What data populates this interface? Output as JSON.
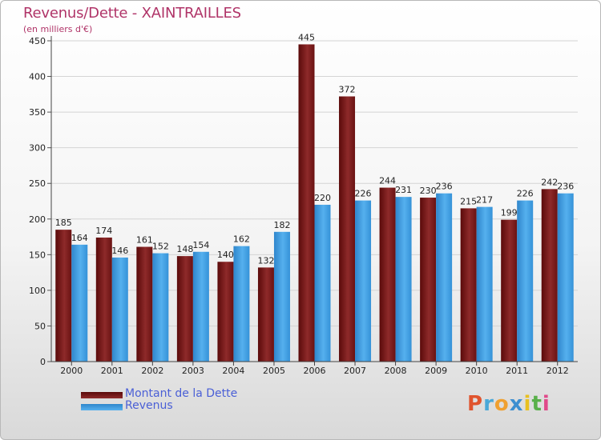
{
  "title": "Revenus/Dette - XAINTRAILLES",
  "subtitle": "(en milliers d'€)",
  "logo": {
    "text": "Proxiti",
    "colors": [
      "#e0542e",
      "#4aa8d8",
      "#f0a030",
      "#3d8fd0",
      "#e8c020",
      "#59b04a",
      "#e04a8a"
    ]
  },
  "chart_data": {
    "type": "bar",
    "title": "Revenus/Dette - XAINTRAILLES",
    "subtitle": "(en milliers d'€)",
    "categories": [
      "2000",
      "2001",
      "2002",
      "2003",
      "2004",
      "2005",
      "2006",
      "2007",
      "2008",
      "2009",
      "2010",
      "2011",
      "2012"
    ],
    "series": [
      {
        "name": "Montant de la Dette",
        "color": "#7a1a1a",
        "values": [
          185,
          174,
          161,
          148,
          140,
          132,
          445,
          372,
          244,
          230,
          215,
          199,
          242
        ]
      },
      {
        "name": "Revenus",
        "color": "#3f9fe0",
        "values": [
          164,
          146,
          152,
          154,
          162,
          182,
          220,
          226,
          231,
          236,
          217,
          226,
          236
        ]
      }
    ],
    "ylim": [
      0,
      450
    ],
    "yticks": [
      0,
      50,
      100,
      150,
      200,
      250,
      300,
      350,
      400,
      450
    ],
    "grid": true,
    "legend": "bottom-left"
  }
}
